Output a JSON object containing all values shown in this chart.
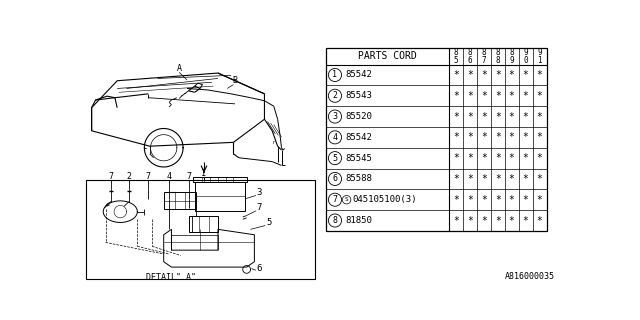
{
  "bg_color": "#ffffff",
  "diagram_label": "A816000035",
  "detail_label": "DETAIL\" A\"",
  "table": {
    "header_col1": "PARTS CORD",
    "year_cols": [
      "85",
      "86",
      "87",
      "88",
      "89",
      "90",
      "91"
    ],
    "rows": [
      {
        "num": "1",
        "part": "85542",
        "special": false
      },
      {
        "num": "2",
        "part": "85543",
        "special": false
      },
      {
        "num": "3",
        "part": "85520",
        "special": false
      },
      {
        "num": "4",
        "part": "85542",
        "special": false
      },
      {
        "num": "5",
        "part": "85545",
        "special": false
      },
      {
        "num": "6",
        "part": "85588",
        "special": false
      },
      {
        "num": "7",
        "part": "045105100(3)",
        "special": true
      },
      {
        "num": "8",
        "part": "81850",
        "special": false
      }
    ]
  }
}
